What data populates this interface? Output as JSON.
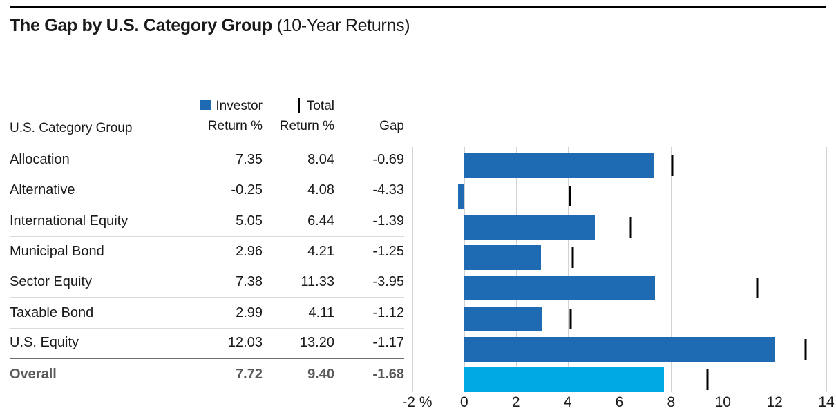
{
  "title": {
    "main": "The Gap by U.S. Category Group",
    "sub": "(10-Year Returns)"
  },
  "table": {
    "category_header": "U.S. Category Group",
    "investor_header": {
      "line1": "Investor",
      "line2": "Return %"
    },
    "total_header": {
      "line1": "Total",
      "line2": "Return %"
    },
    "gap_header": "Gap",
    "rows": [
      {
        "name": "Allocation",
        "investor": "7.35",
        "total": "8.04",
        "gap": "-0.69"
      },
      {
        "name": "Alternative",
        "investor": "-0.25",
        "total": "4.08",
        "gap": "-4.33"
      },
      {
        "name": "International Equity",
        "investor": "5.05",
        "total": "6.44",
        "gap": "-1.39"
      },
      {
        "name": "Municipal Bond",
        "investor": "2.96",
        "total": "4.21",
        "gap": "-1.25"
      },
      {
        "name": "Sector Equity",
        "investor": "7.38",
        "total": "11.33",
        "gap": "-3.95"
      },
      {
        "name": "Taxable Bond",
        "investor": "2.99",
        "total": "4.11",
        "gap": "-1.12"
      },
      {
        "name": "U.S. Equity",
        "investor": "12.03",
        "total": "13.20",
        "gap": "-1.17"
      },
      {
        "name": "Overall",
        "investor": "7.72",
        "total": "9.40",
        "gap": "-1.68",
        "overall": true
      }
    ]
  },
  "chart_data": {
    "type": "bar",
    "orientation": "horizontal",
    "categories": [
      "Allocation",
      "Alternative",
      "International Equity",
      "Municipal Bond",
      "Sector Equity",
      "Taxable Bond",
      "U.S. Equity",
      "Overall"
    ],
    "series": [
      {
        "name": "Investor Return %",
        "style": "bar",
        "values": [
          7.35,
          -0.25,
          5.05,
          2.96,
          7.38,
          2.99,
          12.03,
          7.72
        ]
      },
      {
        "name": "Total Return %",
        "style": "tick",
        "values": [
          8.04,
          4.08,
          6.44,
          4.21,
          11.33,
          4.11,
          13.2,
          9.4
        ]
      }
    ],
    "xlim": [
      -2,
      14
    ],
    "xticks": [
      -2,
      0,
      2,
      4,
      6,
      8,
      10,
      12,
      14
    ],
    "xtick_labels": [
      "-2 %",
      "0",
      "2",
      "4",
      "6",
      "8",
      "10",
      "12",
      "14"
    ],
    "grid": "vertical",
    "legend_position": "above-table",
    "colors": {
      "bar": "#1e6bb4",
      "bar_overall": "#00a9e1",
      "tick": "#000000",
      "gridline": "#d2d2d2"
    },
    "layout": {
      "bar_pitch": 44.3,
      "bar_top_offset": 10,
      "tick_top_offset": 13
    }
  }
}
